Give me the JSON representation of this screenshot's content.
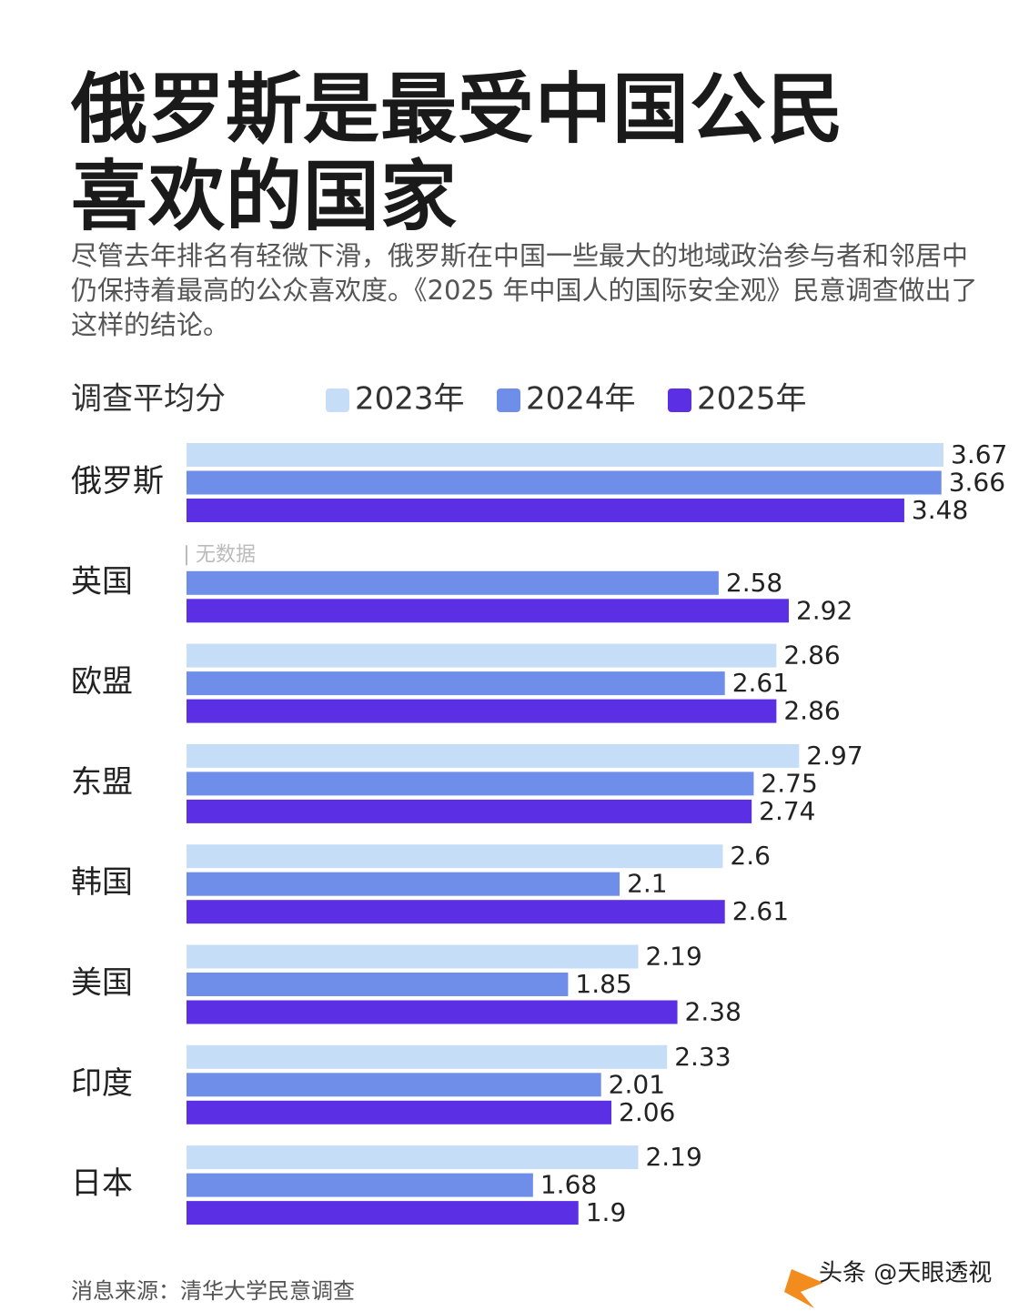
{
  "chart_data": {
    "type": "hbar",
    "title": "俄罗斯是最受中国公民喜欢的国家",
    "subtitle": "尽管去年排名有轻微下滑，俄罗斯在中国一些最大的地域政治参与者和邻居中仍保持着最高的公众喜欢度。《2025 年中国人的国际安全观》民意调查做出了这样的结论。",
    "legend_title": "调查平均分",
    "categories": [
      "俄罗斯",
      "英国",
      "欧盟",
      "东盟",
      "韩国",
      "美国",
      "印度",
      "日本"
    ],
    "series": [
      {
        "name": "2023年",
        "color": "#c6ddf8",
        "values": [
          3.67,
          null,
          2.86,
          2.97,
          2.6,
          2.19,
          2.33,
          2.19
        ]
      },
      {
        "name": "2024年",
        "color": "#6e8ee9",
        "values": [
          3.66,
          2.58,
          2.61,
          2.75,
          2.1,
          1.85,
          2.01,
          1.68
        ]
      },
      {
        "name": "2025年",
        "color": "#5b2fe3",
        "values": [
          3.48,
          2.92,
          2.86,
          2.74,
          2.61,
          2.38,
          2.06,
          1.9
        ]
      }
    ],
    "no_data_label": "无数据",
    "source": "消息来源：清华大学民意调查",
    "watermark": "头条 @天眼透视"
  }
}
